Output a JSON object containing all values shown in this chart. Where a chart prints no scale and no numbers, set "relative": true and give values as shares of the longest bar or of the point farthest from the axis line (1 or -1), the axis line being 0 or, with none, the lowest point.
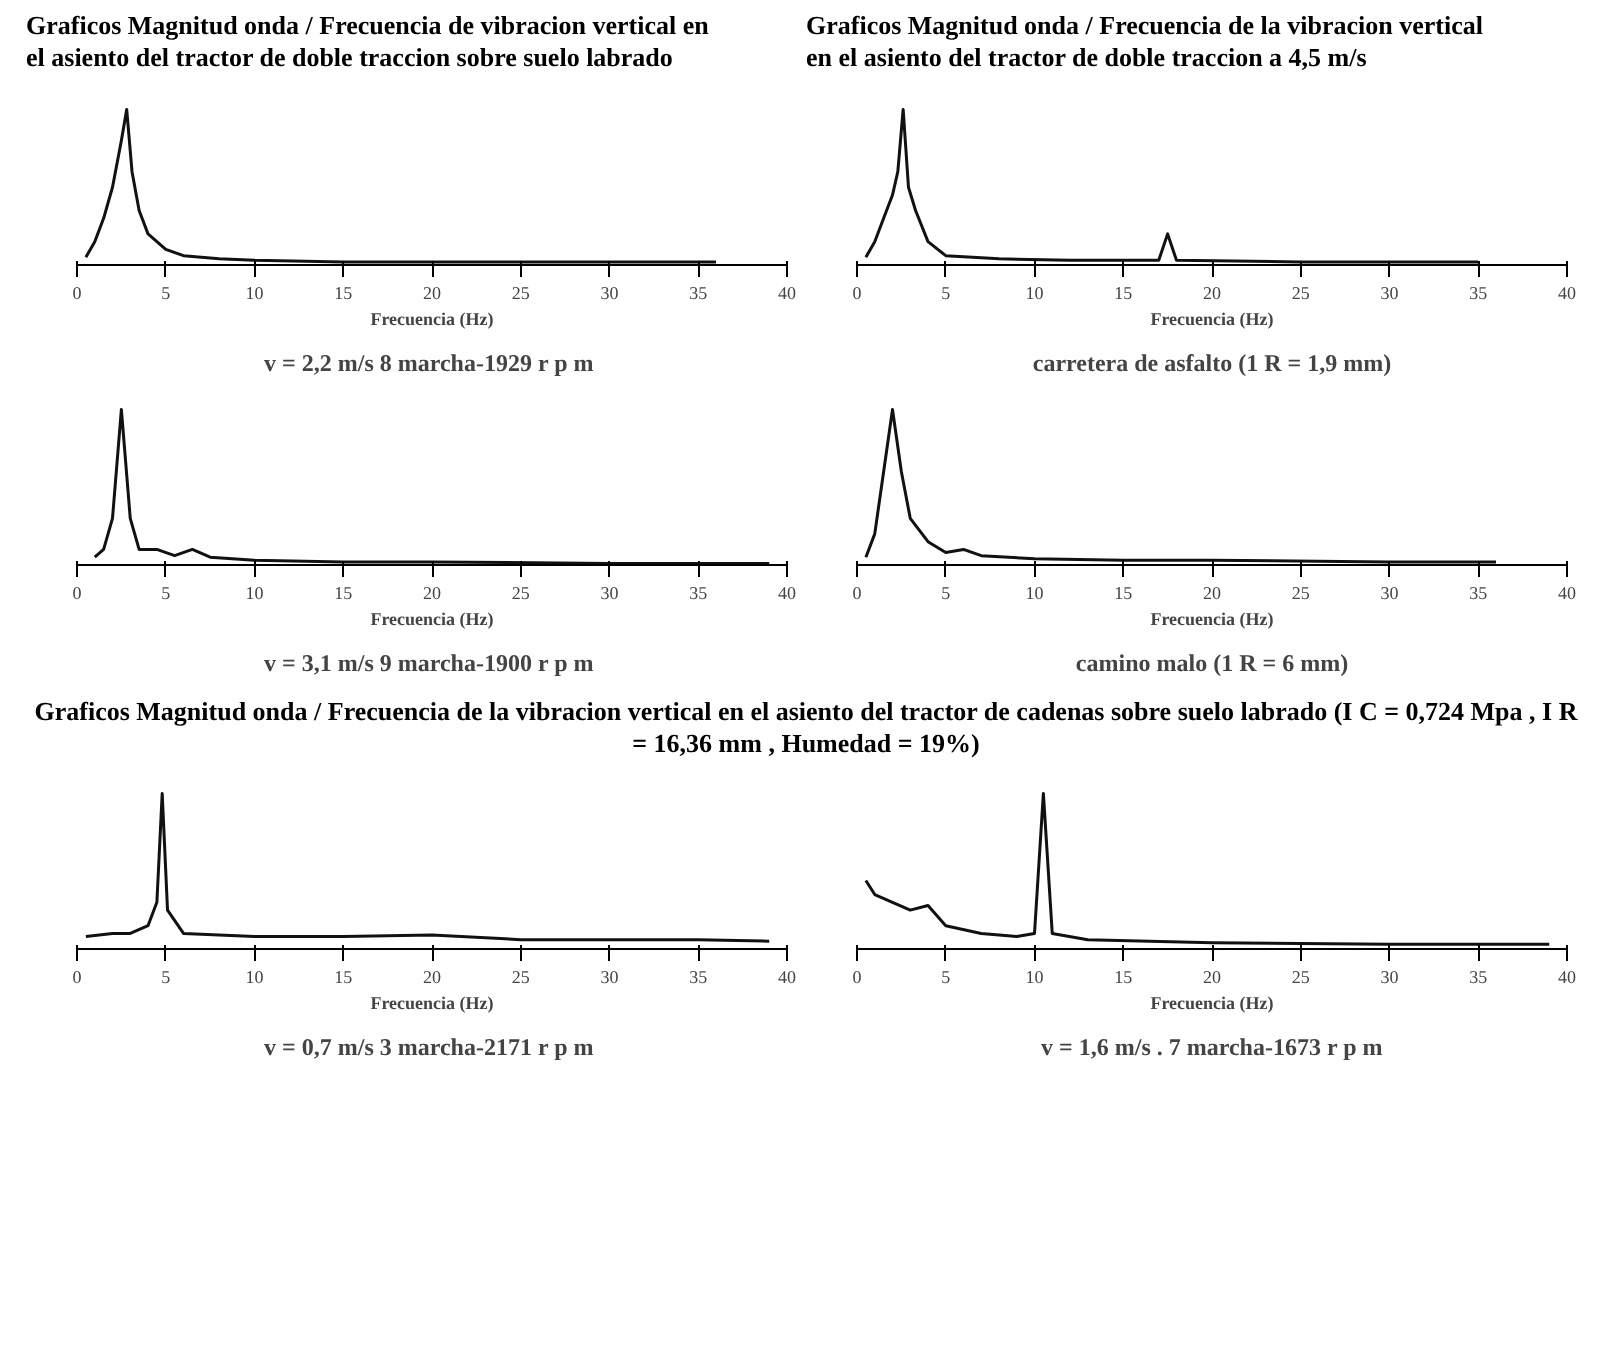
{
  "chart_data": [
    {
      "type": "line",
      "title": "Graficos Magnitud onda / Frecuencia de vibracion vertical en el asiento del tractor de doble traccion sobre suelo labrado",
      "xlabel": "Frecuencia (Hz)",
      "relative": true,
      "xlim": [
        0,
        40
      ],
      "xticks": [
        0,
        5,
        10,
        15,
        20,
        25,
        30,
        35,
        40
      ],
      "annotations": [
        "v = 2,2 m/s  8 marcha-1929 r p m"
      ],
      "series": [
        {
          "color": "#111111",
          "x": [
            0.5,
            1,
            1.5,
            2,
            2.5,
            2.8,
            3.1,
            3.5,
            4,
            5,
            6,
            8,
            10,
            15,
            20,
            25,
            30,
            36
          ],
          "values": [
            0.05,
            0.15,
            0.3,
            0.5,
            0.8,
            1,
            0.6,
            0.35,
            0.2,
            0.1,
            0.06,
            0.04,
            0.03,
            0.02,
            0.02,
            0.02,
            0.02,
            0.02
          ]
        }
      ]
    },
    {
      "type": "line",
      "title": "Graficos Magnitud onda / Frecuencia de la vibracion vertical en el asiento del tractor de doble traccion a 4,5 m/s",
      "xlabel": "Frecuencia (Hz)",
      "relative": true,
      "xlim": [
        0,
        40
      ],
      "xticks": [
        0,
        5,
        10,
        15,
        20,
        25,
        30,
        35,
        40
      ],
      "annotations": [
        "carretera de asfalto (1 R = 1,9 mm)"
      ],
      "series": [
        {
          "color": "#111111",
          "x": [
            0.5,
            1,
            1.5,
            2,
            2.3,
            2.6,
            2.9,
            3.3,
            4,
            5,
            8,
            12,
            17,
            17.5,
            18,
            25,
            30,
            35
          ],
          "values": [
            0.05,
            0.15,
            0.3,
            0.45,
            0.6,
            1,
            0.5,
            0.35,
            0.15,
            0.06,
            0.04,
            0.03,
            0.03,
            0.2,
            0.03,
            0.02,
            0.02,
            0.02
          ]
        }
      ]
    },
    {
      "type": "line",
      "xlabel": "Frecuencia (Hz)",
      "relative": true,
      "xlim": [
        0,
        40
      ],
      "xticks": [
        0,
        5,
        10,
        15,
        20,
        25,
        30,
        35,
        40
      ],
      "annotations": [
        "v = 3,1 m/s  9 marcha-1900 r p m"
      ],
      "series": [
        {
          "color": "#111111",
          "x": [
            1,
            1.5,
            2,
            2.5,
            3,
            3.5,
            4.5,
            5.5,
            6.5,
            7.5,
            10,
            15,
            20,
            30,
            39
          ],
          "values": [
            0.05,
            0.1,
            0.3,
            1,
            0.3,
            0.1,
            0.1,
            0.06,
            0.1,
            0.05,
            0.03,
            0.02,
            0.02,
            0.01,
            0.01
          ]
        }
      ]
    },
    {
      "type": "line",
      "xlabel": "Frecuencia (Hz)",
      "relative": true,
      "xlim": [
        0,
        40
      ],
      "xticks": [
        0,
        5,
        10,
        15,
        20,
        25,
        30,
        35,
        40
      ],
      "annotations": [
        "camino malo (1 R = 6 mm)"
      ],
      "series": [
        {
          "color": "#111111",
          "x": [
            0.5,
            1,
            1.5,
            2,
            2.5,
            3,
            4,
            5,
            6,
            7,
            10,
            15,
            20,
            30,
            36
          ],
          "values": [
            0.05,
            0.2,
            0.6,
            1,
            0.6,
            0.3,
            0.15,
            0.08,
            0.1,
            0.06,
            0.04,
            0.03,
            0.03,
            0.02,
            0.02
          ]
        }
      ]
    },
    {
      "type": "line",
      "title": "Graficos Magnitud onda / Frecuencia de la vibracion vertical en el asiento del tractor de cadenas sobre suelo labrado (I C = 0,724 Mpa , I R = 16,36 mm , Humedad = 19%)",
      "xlabel": "Frecuencia (Hz)",
      "relative": true,
      "xlim": [
        0,
        40
      ],
      "xticks": [
        0,
        5,
        10,
        15,
        20,
        25,
        30,
        35,
        40
      ],
      "annotations": [
        "v = 0,7 m/s  3 marcha-2171 r p m"
      ],
      "series": [
        {
          "color": "#111111",
          "x": [
            0.5,
            2,
            3,
            4,
            4.5,
            4.8,
            5.1,
            6,
            10,
            15,
            20,
            25,
            30,
            35,
            39
          ],
          "values": [
            0.08,
            0.1,
            0.1,
            0.15,
            0.3,
            1,
            0.25,
            0.1,
            0.08,
            0.08,
            0.09,
            0.06,
            0.06,
            0.06,
            0.05
          ]
        }
      ]
    },
    {
      "type": "line",
      "xlabel": "Frecuencia (Hz)",
      "relative": true,
      "xlim": [
        0,
        40
      ],
      "xticks": [
        0,
        5,
        10,
        15,
        20,
        25,
        30,
        35,
        40
      ],
      "annotations": [
        "v = 1,6 m/s . 7 marcha-1673 r p m"
      ],
      "series": [
        {
          "color": "#111111",
          "x": [
            0.5,
            1,
            2,
            3,
            4,
            5,
            7,
            9,
            10,
            10.5,
            11,
            13,
            20,
            30,
            39
          ],
          "values": [
            0.44,
            0.35,
            0.3,
            0.25,
            0.28,
            0.15,
            0.1,
            0.08,
            0.1,
            1,
            0.1,
            0.06,
            0.04,
            0.03,
            0.03
          ]
        }
      ]
    }
  ]
}
